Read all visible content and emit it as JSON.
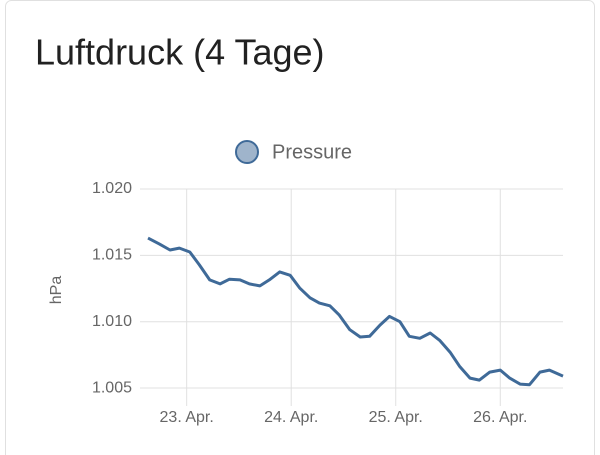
{
  "chart_data": {
    "type": "line",
    "title": "Luftdruck (4 Tage)",
    "y_label": "hPa",
    "x": [
      22.63,
      22.74,
      22.84,
      22.93,
      23.03,
      23.12,
      23.22,
      23.32,
      23.41,
      23.51,
      23.6,
      23.7,
      23.79,
      23.89,
      23.99,
      24.08,
      24.18,
      24.27,
      24.37,
      24.46,
      24.56,
      24.66,
      24.75,
      24.85,
      24.94,
      25.04,
      25.13,
      25.23,
      25.33,
      25.42,
      25.52,
      25.61,
      25.71,
      25.8,
      25.9,
      26.0,
      26.09,
      26.19,
      26.28,
      26.38,
      26.47,
      26.57,
      26.6
    ],
    "series": [
      {
        "name": "Pressure",
        "color": "#3f6a98",
        "values": [
          1016.3,
          1015.85,
          1015.4,
          1015.55,
          1015.25,
          1014.3,
          1013.15,
          1012.85,
          1013.2,
          1013.15,
          1012.85,
          1012.7,
          1013.15,
          1013.75,
          1013.5,
          1012.55,
          1011.8,
          1011.4,
          1011.2,
          1010.5,
          1009.4,
          1008.85,
          1008.9,
          1009.75,
          1010.4,
          1010,
          1008.9,
          1008.75,
          1009.15,
          1008.6,
          1007.7,
          1006.65,
          1005.75,
          1005.6,
          1006.2,
          1006.35,
          1005.75,
          1005.3,
          1005.25,
          1006.2,
          1006.35,
          1006,
          1005.9
        ]
      }
    ],
    "xlim": [
      22.63,
      26.6
    ],
    "xticks": [
      {
        "value": 23,
        "label": "23. Apr."
      },
      {
        "value": 24,
        "label": "24. Apr."
      },
      {
        "value": 25,
        "label": "25. Apr."
      },
      {
        "value": 26,
        "label": "26. Apr."
      }
    ],
    "ylim": [
      1004.25,
      1020
    ],
    "yticks": [
      {
        "value": 1005,
        "label": "1.005"
      },
      {
        "value": 1010,
        "label": "1.010"
      },
      {
        "value": 1015,
        "label": "1.015"
      },
      {
        "value": 1020,
        "label": "1.020"
      }
    ],
    "grid": true
  }
}
